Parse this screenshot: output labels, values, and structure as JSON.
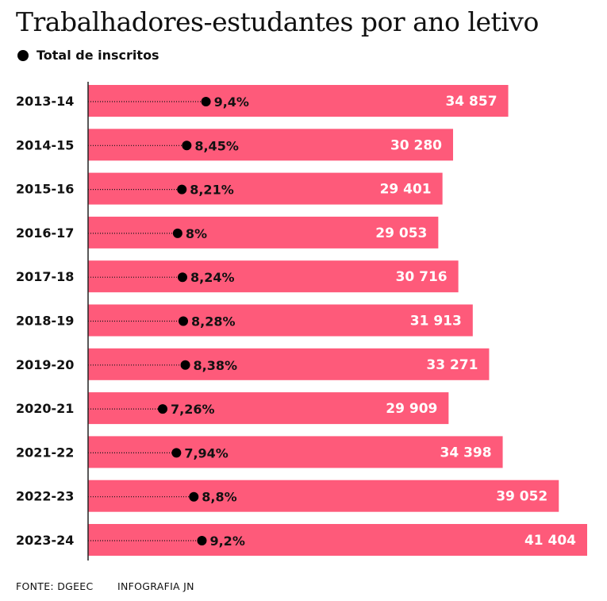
{
  "title": "Trabalhadores-estudantes por ano letivo",
  "legend": {
    "label": "Total de inscritos"
  },
  "colors": {
    "bar": "#fe5a7a",
    "dot": "#000000",
    "axis": "#222222",
    "bar_text": "#ffffff"
  },
  "footer": {
    "source": "FONTE: DGEEC",
    "credit": "INFOGRAFIA JN"
  },
  "chart_data": {
    "type": "bar",
    "orientation": "horizontal",
    "categories": [
      "2013-14",
      "2014-15",
      "2015-16",
      "2016-17",
      "2017-18",
      "2018-19",
      "2019-20",
      "2020-21",
      "2021-22",
      "2022-23",
      "2023-24"
    ],
    "series": [
      {
        "name": "Total de inscritos",
        "values": [
          34857,
          30280,
          29401,
          29053,
          30716,
          31913,
          33271,
          29909,
          34398,
          39052,
          41404
        ],
        "labels": [
          "34 857",
          "30 280",
          "29 401",
          "29 053",
          "30 716",
          "31 913",
          "33 271",
          "29 909",
          "34 398",
          "39 052",
          "41 404"
        ]
      },
      {
        "values": [
          9.4,
          8.45,
          8.21,
          8.0,
          8.24,
          8.28,
          8.38,
          7.26,
          7.94,
          8.8,
          9.2
        ],
        "labels": [
          "9,4%",
          "8,45%",
          "8,21%",
          "8%",
          "8,24%",
          "8,28%",
          "8,38%",
          "7,26%",
          "7,94%",
          "8,8%",
          "9,2%"
        ]
      }
    ],
    "legend_position": "top-left",
    "grid": false
  }
}
